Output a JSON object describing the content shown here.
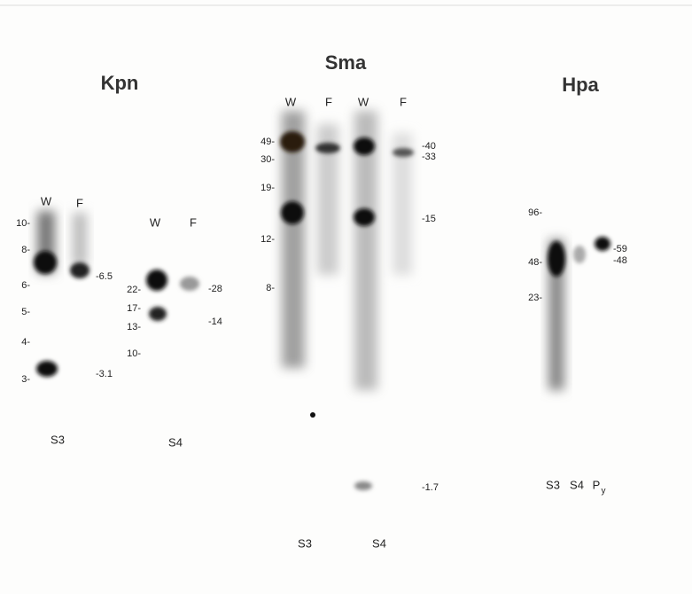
{
  "panels": [
    {
      "title": "Kpn",
      "groups": [
        {
          "lanes": [
            "W",
            "F"
          ],
          "left_markers": [
            "10-",
            "8-",
            "6-",
            "5-",
            "4-",
            "3-"
          ],
          "right_labels": [
            "-6.5",
            "-3.1"
          ],
          "sample": "S3"
        },
        {
          "lanes": [
            "W",
            "F"
          ],
          "left_markers": [
            "22-",
            "17-",
            "13-",
            "10-"
          ],
          "right_labels": [
            "-28",
            "-14"
          ],
          "sample": "S4"
        }
      ]
    },
    {
      "title": "Sma",
      "lanes": [
        "W",
        "F",
        "W",
        "F"
      ],
      "left_markers": [
        "49-",
        "30-",
        "19-",
        "12-",
        "8-"
      ],
      "right_labels": [
        "-40",
        "-33",
        "-15",
        "-1.7"
      ],
      "samples": [
        "S3",
        "S4"
      ]
    },
    {
      "title": "Hpa",
      "left_markers": [
        "96-",
        "48-",
        "23-"
      ],
      "right_labels": [
        "-59",
        "-48"
      ],
      "samples": [
        "S3",
        "S4",
        "P"
      ],
      "subscript": "y"
    }
  ]
}
